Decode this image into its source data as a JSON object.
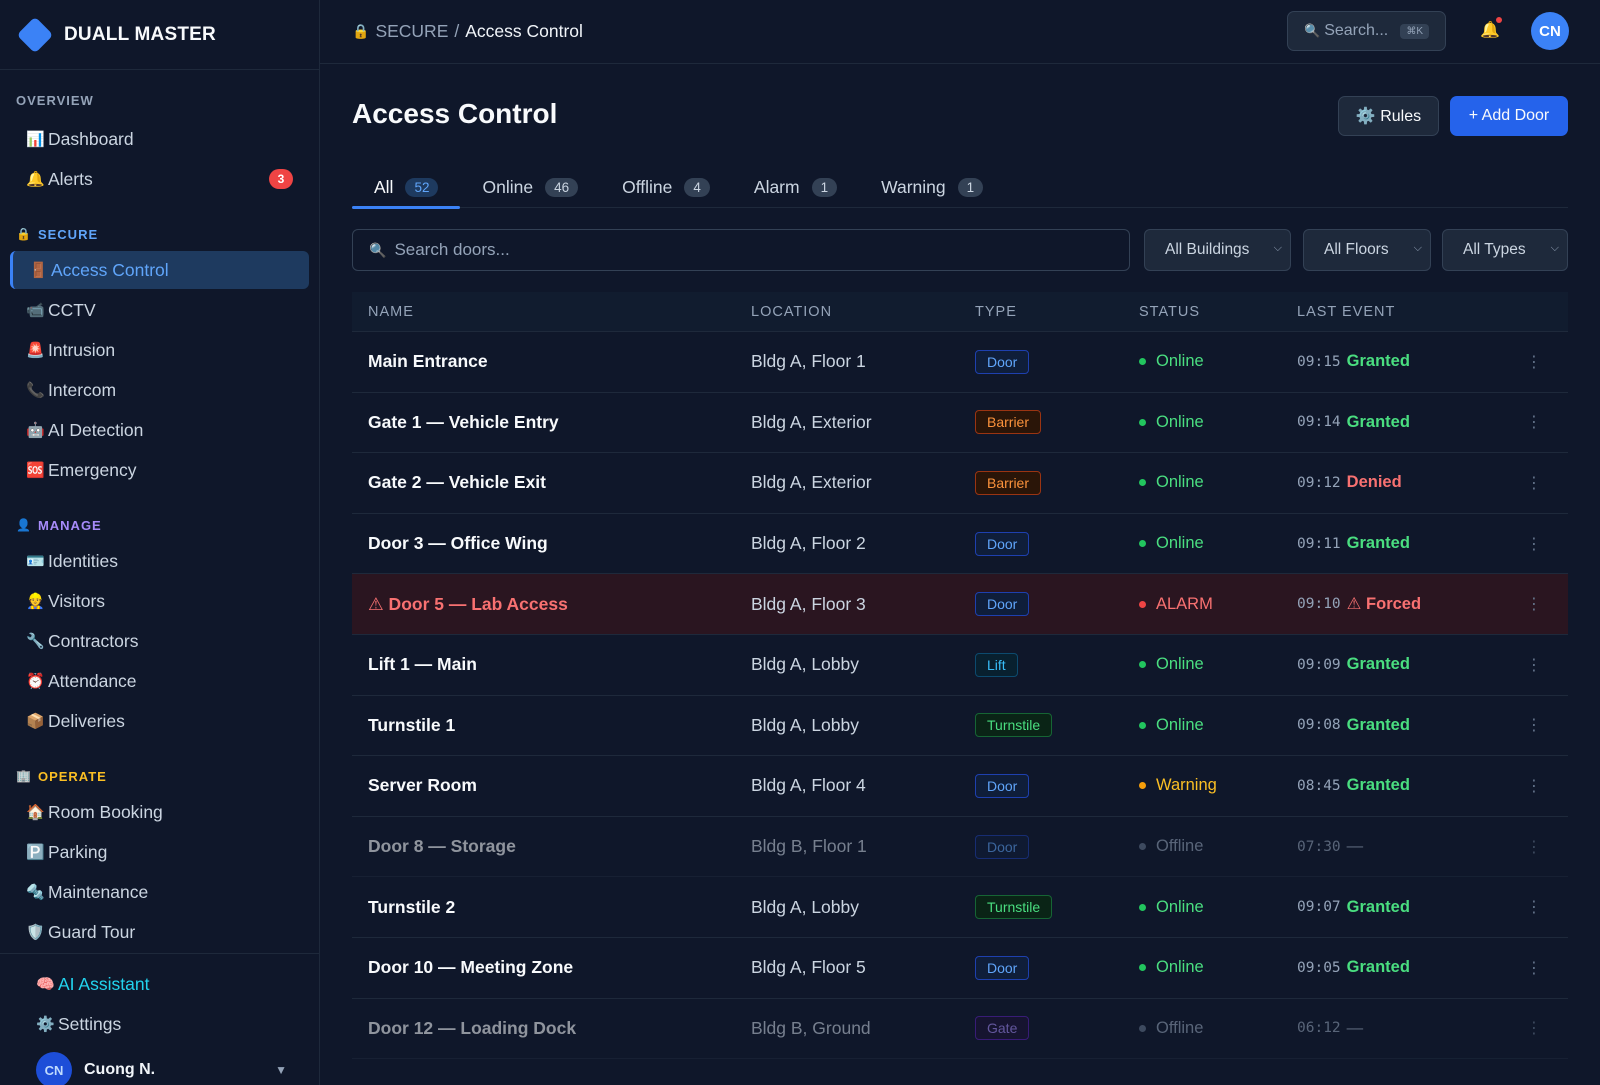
{
  "brand": {
    "name": "DUALL MASTER"
  },
  "sidebar": {
    "overview": {
      "title": "OVERVIEW",
      "items": [
        {
          "icon": "📊",
          "label": "Dashboard"
        },
        {
          "icon": "🔔",
          "label": "Alerts",
          "badge": "3"
        }
      ]
    },
    "secure": {
      "icon": "🔒",
      "title": "SECURE",
      "items": [
        {
          "icon": "🚪",
          "label": "Access Control"
        },
        {
          "icon": "📹",
          "label": "CCTV"
        },
        {
          "icon": "🚨",
          "label": "Intrusion"
        },
        {
          "icon": "📞",
          "label": "Intercom"
        },
        {
          "icon": "🤖",
          "label": "AI Detection"
        },
        {
          "icon": "🆘",
          "label": "Emergency"
        }
      ]
    },
    "manage": {
      "icon": "👤",
      "title": "MANAGE",
      "items": [
        {
          "icon": "🪪",
          "label": "Identities"
        },
        {
          "icon": "👷",
          "label": "Visitors"
        },
        {
          "icon": "🔧",
          "label": "Contractors"
        },
        {
          "icon": "⏰",
          "label": "Attendance"
        },
        {
          "icon": "📦",
          "label": "Deliveries"
        }
      ]
    },
    "operate": {
      "icon": "🏢",
      "title": "OPERATE",
      "items": [
        {
          "icon": "🏠",
          "label": "Room Booking"
        },
        {
          "icon": "🅿️",
          "label": "Parking"
        },
        {
          "icon": "🔩",
          "label": "Maintenance"
        },
        {
          "icon": "🛡️",
          "label": "Guard Tour"
        }
      ]
    },
    "footer": {
      "ai_icon": "🧠",
      "ai_label": "AI Assistant",
      "settings_icon": "⚙️",
      "settings_label": "Settings",
      "user_initials": "CN",
      "user_name": "Cuong N."
    }
  },
  "topbar": {
    "crumb_icon": "🔒",
    "crumb_parent": "SECURE",
    "crumb_sep": "/",
    "crumb_current": "Access Control",
    "search_icon": "🔍",
    "search_placeholder": "Search...",
    "search_shortcut": "⌘K",
    "bell_icon": "🔔",
    "avatar_initials": "CN"
  },
  "page": {
    "title": "Access Control",
    "rules_label": "⚙️ Rules",
    "add_door_label": "+ Add Door"
  },
  "tabs": [
    {
      "label": "All",
      "count": "52"
    },
    {
      "label": "Online",
      "count": "46"
    },
    {
      "label": "Offline",
      "count": "4"
    },
    {
      "label": "Alarm",
      "count": "1"
    },
    {
      "label": "Warning",
      "count": "1"
    }
  ],
  "filters": {
    "search_icon": "🔍",
    "search_placeholder": "Search doors...",
    "building": "All Buildings",
    "floor": "All Floors",
    "type": "All Types"
  },
  "table": {
    "headers": {
      "name": "NAME",
      "location": "LOCATION",
      "type": "TYPE",
      "status": "STATUS",
      "last_event": "LAST EVENT"
    },
    "rows": [
      {
        "name": "Main Entrance",
        "location": "Bldg A, Floor 1",
        "type": "Door",
        "status": "Online",
        "time": "09:15",
        "event": "Granted"
      },
      {
        "name": "Gate 1 — Vehicle Entry",
        "location": "Bldg A, Exterior",
        "type": "Barrier",
        "status": "Online",
        "time": "09:14",
        "event": "Granted"
      },
      {
        "name": "Gate 2 — Vehicle Exit",
        "location": "Bldg A, Exterior",
        "type": "Barrier",
        "status": "Online",
        "time": "09:12",
        "event": "Denied"
      },
      {
        "name": "Door 3 — Office Wing",
        "location": "Bldg A, Floor 2",
        "type": "Door",
        "status": "Online",
        "time": "09:11",
        "event": "Granted"
      },
      {
        "name": "⚠ Door 5 — Lab Access",
        "location": "Bldg A, Floor 3",
        "type": "Door",
        "status": "ALARM",
        "time": "09:10",
        "event": "⚠ Forced"
      },
      {
        "name": "Lift 1 — Main",
        "location": "Bldg A, Lobby",
        "type": "Lift",
        "status": "Online",
        "time": "09:09",
        "event": "Granted"
      },
      {
        "name": "Turnstile 1",
        "location": "Bldg A, Lobby",
        "type": "Turnstile",
        "status": "Online",
        "time": "09:08",
        "event": "Granted"
      },
      {
        "name": "Server Room",
        "location": "Bldg A, Floor 4",
        "type": "Door",
        "status": "Warning",
        "time": "08:45",
        "event": "Granted"
      },
      {
        "name": "Door 8 — Storage",
        "location": "Bldg B, Floor 1",
        "type": "Door",
        "status": "Offline",
        "time": "07:30",
        "event": "—"
      },
      {
        "name": "Turnstile 2",
        "location": "Bldg A, Lobby",
        "type": "Turnstile",
        "status": "Online",
        "time": "09:07",
        "event": "Granted"
      },
      {
        "name": "Door 10 — Meeting Zone",
        "location": "Bldg A, Floor 5",
        "type": "Door",
        "status": "Online",
        "time": "09:05",
        "event": "Granted"
      },
      {
        "name": "Door 12 — Loading Dock",
        "location": "Bldg B, Ground",
        "type": "Gate",
        "status": "Offline",
        "time": "06:12",
        "event": "—"
      }
    ],
    "more_icon": "⋮"
  }
}
